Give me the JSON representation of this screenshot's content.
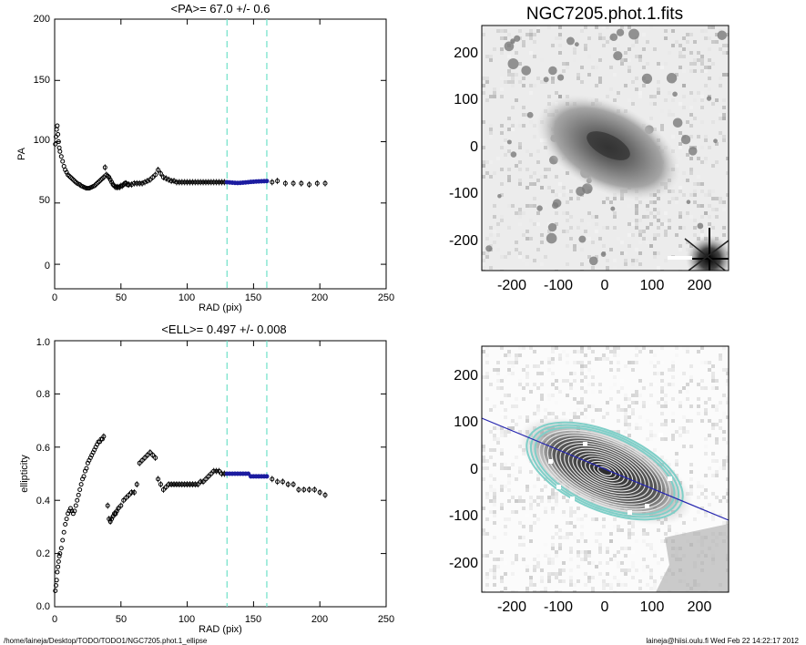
{
  "chart_data": [
    {
      "type": "scatter",
      "title": "<PA>=  67.0 +/-    0.6",
      "xlabel": "RAD (pix)",
      "ylabel": "PA",
      "xlim": [
        0,
        250
      ],
      "ylim": [
        -20,
        200
      ],
      "xticks": [
        "0",
        "50",
        "100",
        "150",
        "200",
        "250"
      ],
      "yticks": [
        "0",
        "50",
        "100",
        "150",
        "200"
      ],
      "vlines": [
        130,
        160
      ],
      "series": [
        {
          "color": "#000000",
          "points": [
            [
              0.5,
              98
            ],
            [
              1,
              104
            ],
            [
              1.5,
              110
            ],
            [
              2,
              113
            ],
            [
              2.5,
              106
            ],
            [
              3,
              100
            ],
            [
              3.5,
              95
            ],
            [
              4,
              92
            ],
            [
              5,
              88
            ],
            [
              6,
              84
            ],
            [
              7,
              80
            ],
            [
              8,
              77
            ],
            [
              9,
              75
            ],
            [
              10,
              73
            ],
            [
              11,
              72
            ],
            [
              12,
              71
            ],
            [
              13,
              70
            ],
            [
              14,
              69
            ],
            [
              15,
              68
            ],
            [
              16,
              67
            ],
            [
              17,
              66
            ],
            [
              18,
              65.5
            ],
            [
              19,
              65
            ],
            [
              20,
              64
            ],
            [
              21,
              63.5
            ],
            [
              22,
              63
            ],
            [
              23,
              62.5
            ],
            [
              24,
              62
            ],
            [
              25,
              62
            ],
            [
              26,
              62
            ],
            [
              27,
              62.5
            ],
            [
              28,
              63
            ],
            [
              29,
              63.5
            ],
            [
              30,
              64
            ],
            [
              31,
              65
            ],
            [
              32,
              66
            ],
            [
              33,
              67
            ],
            [
              34,
              68
            ],
            [
              35,
              69
            ],
            [
              36,
              70
            ],
            [
              37,
              71
            ],
            [
              38,
              79
            ],
            [
              39,
              73
            ],
            [
              40,
              72
            ],
            [
              41,
              71
            ],
            [
              42,
              69
            ],
            [
              43,
              67
            ],
            [
              44,
              65
            ],
            [
              45,
              64
            ],
            [
              46,
              63
            ],
            [
              47,
              63
            ],
            [
              48,
              63
            ],
            [
              49,
              63
            ],
            [
              50,
              64
            ],
            [
              51,
              64
            ],
            [
              52,
              65
            ],
            [
              53,
              66
            ],
            [
              54,
              66
            ],
            [
              55,
              65
            ],
            [
              56,
              65
            ],
            [
              58,
              65
            ],
            [
              60,
              66
            ],
            [
              62,
              66
            ],
            [
              64,
              66
            ],
            [
              66,
              66
            ],
            [
              68,
              67
            ],
            [
              70,
              68
            ],
            [
              72,
              69
            ],
            [
              74,
              71
            ],
            [
              76,
              73
            ],
            [
              78,
              77
            ],
            [
              80,
              74
            ],
            [
              82,
              71
            ],
            [
              84,
              70
            ],
            [
              86,
              69
            ],
            [
              88,
              68
            ],
            [
              90,
              68
            ],
            [
              92,
              67
            ],
            [
              94,
              67
            ],
            [
              96,
              67
            ],
            [
              98,
              67
            ],
            [
              100,
              67
            ],
            [
              102,
              67
            ],
            [
              104,
              67
            ],
            [
              106,
              67
            ],
            [
              108,
              67
            ],
            [
              110,
              67
            ],
            [
              112,
              67
            ],
            [
              114,
              67
            ],
            [
              116,
              67
            ],
            [
              118,
              67
            ],
            [
              120,
              67
            ],
            [
              122,
              67
            ],
            [
              124,
              67
            ],
            [
              126,
              67
            ],
            [
              128,
              67
            ],
            [
              164,
              67
            ],
            [
              168,
              68
            ],
            [
              174,
              66
            ],
            [
              180,
              66
            ],
            [
              186,
              66
            ],
            [
              192,
              65
            ],
            [
              198,
              66
            ],
            [
              204,
              66
            ]
          ]
        },
        {
          "color": "#1c1ca0",
          "points": [
            [
              130,
              67
            ],
            [
              132,
              66.8
            ],
            [
              134,
              66.6
            ],
            [
              136,
              66.4
            ],
            [
              138,
              66.3
            ],
            [
              140,
              66.4
            ],
            [
              142,
              66.6
            ],
            [
              144,
              66.8
            ],
            [
              146,
              67
            ],
            [
              148,
              67.2
            ],
            [
              150,
              67.3
            ],
            [
              152,
              67.5
            ],
            [
              154,
              67.6
            ],
            [
              156,
              67.7
            ],
            [
              158,
              67.8
            ],
            [
              160,
              67.9
            ]
          ]
        }
      ]
    },
    {
      "type": "scatter",
      "title": "<ELL>= 0.497 +/-   0.008",
      "xlabel": "RAD (pix)",
      "ylabel": "ellipticity",
      "xlim": [
        0,
        250
      ],
      "ylim": [
        0,
        1
      ],
      "xticks": [
        "0",
        "50",
        "100",
        "150",
        "200",
        "250"
      ],
      "yticks": [
        "0.0",
        "0.2",
        "0.4",
        "0.6",
        "0.8",
        "1.0"
      ],
      "vlines": [
        130,
        160
      ],
      "series": [
        {
          "color": "#000000",
          "points": [
            [
              0.5,
              0.06
            ],
            [
              1,
              0.08
            ],
            [
              1.5,
              0.1
            ],
            [
              2,
              0.13
            ],
            [
              2.5,
              0.15
            ],
            [
              3,
              0.17
            ],
            [
              3.5,
              0.19
            ],
            [
              4,
              0.2
            ],
            [
              5,
              0.22
            ],
            [
              6,
              0.25
            ],
            [
              7,
              0.28
            ],
            [
              8,
              0.31
            ],
            [
              9,
              0.33
            ],
            [
              10,
              0.35
            ],
            [
              11,
              0.36
            ],
            [
              12,
              0.37
            ],
            [
              13,
              0.36
            ],
            [
              14,
              0.35
            ],
            [
              15,
              0.36
            ],
            [
              16,
              0.38
            ],
            [
              17,
              0.4
            ],
            [
              18,
              0.42
            ],
            [
              19,
              0.44
            ],
            [
              20,
              0.46
            ],
            [
              21,
              0.48
            ],
            [
              22,
              0.49
            ],
            [
              23,
              0.51
            ],
            [
              24,
              0.52
            ],
            [
              25,
              0.54
            ],
            [
              26,
              0.55
            ],
            [
              27,
              0.56
            ],
            [
              28,
              0.57
            ],
            [
              29,
              0.58
            ],
            [
              30,
              0.59
            ],
            [
              31,
              0.6
            ],
            [
              32,
              0.61
            ],
            [
              33,
              0.62
            ],
            [
              34,
              0.62
            ],
            [
              35,
              0.63
            ],
            [
              36,
              0.63
            ],
            [
              37,
              0.64
            ],
            [
              40,
              0.38
            ],
            [
              41,
              0.33
            ],
            [
              42,
              0.32
            ],
            [
              43,
              0.33
            ],
            [
              44,
              0.34
            ],
            [
              45,
              0.35
            ],
            [
              46,
              0.35
            ],
            [
              47,
              0.36
            ],
            [
              48,
              0.37
            ],
            [
              50,
              0.38
            ],
            [
              52,
              0.4
            ],
            [
              54,
              0.41
            ],
            [
              56,
              0.42
            ],
            [
              58,
              0.43
            ],
            [
              60,
              0.43
            ],
            [
              62,
              0.46
            ],
            [
              64,
              0.54
            ],
            [
              66,
              0.55
            ],
            [
              68,
              0.56
            ],
            [
              70,
              0.57
            ],
            [
              72,
              0.58
            ],
            [
              74,
              0.57
            ],
            [
              76,
              0.56
            ],
            [
              78,
              0.48
            ],
            [
              80,
              0.46
            ],
            [
              82,
              0.44
            ],
            [
              84,
              0.45
            ],
            [
              86,
              0.46
            ],
            [
              88,
              0.46
            ],
            [
              90,
              0.46
            ],
            [
              92,
              0.46
            ],
            [
              94,
              0.46
            ],
            [
              96,
              0.46
            ],
            [
              98,
              0.46
            ],
            [
              100,
              0.46
            ],
            [
              102,
              0.46
            ],
            [
              104,
              0.46
            ],
            [
              106,
              0.46
            ],
            [
              108,
              0.46
            ],
            [
              110,
              0.47
            ],
            [
              112,
              0.47
            ],
            [
              114,
              0.48
            ],
            [
              116,
              0.49
            ],
            [
              118,
              0.5
            ],
            [
              120,
              0.51
            ],
            [
              122,
              0.51
            ],
            [
              124,
              0.51
            ],
            [
              126,
              0.5
            ],
            [
              128,
              0.5
            ],
            [
              164,
              0.48
            ],
            [
              168,
              0.47
            ],
            [
              172,
              0.47
            ],
            [
              176,
              0.46
            ],
            [
              180,
              0.46
            ],
            [
              184,
              0.44
            ],
            [
              188,
              0.44
            ],
            [
              192,
              0.44
            ],
            [
              196,
              0.44
            ],
            [
              200,
              0.43
            ],
            [
              204,
              0.42
            ]
          ]
        },
        {
          "color": "#1c1ca0",
          "points": [
            [
              130,
              0.5
            ],
            [
              132,
              0.5
            ],
            [
              134,
              0.5
            ],
            [
              136,
              0.5
            ],
            [
              138,
              0.5
            ],
            [
              140,
              0.5
            ],
            [
              142,
              0.5
            ],
            [
              144,
              0.5
            ],
            [
              146,
              0.5
            ],
            [
              148,
              0.49
            ],
            [
              150,
              0.49
            ],
            [
              152,
              0.49
            ],
            [
              154,
              0.49
            ],
            [
              156,
              0.49
            ],
            [
              158,
              0.49
            ],
            [
              160,
              0.49
            ]
          ]
        }
      ]
    },
    {
      "type": "heatmap",
      "title": "NGC7205.phot.1.fits",
      "xlim": [
        -270,
        260
      ],
      "ylim": [
        -265,
        270
      ],
      "xticks": [
        "-200",
        "-100",
        "0",
        "100",
        "200"
      ],
      "yticks": [
        "200",
        "100",
        "0",
        "-100",
        "-200"
      ]
    },
    {
      "type": "heatmap",
      "title": "",
      "xlim": [
        -270,
        260
      ],
      "ylim": [
        -265,
        270
      ],
      "xticks": [
        "-200",
        "-100",
        "0",
        "100",
        "200"
      ],
      "yticks": [
        "200",
        "100",
        "0",
        "-100",
        "-200"
      ]
    }
  ],
  "footer": {
    "left": "/home/laineja/Desktop/TODO/TODO1/NGC7205.phot.1_ellipse",
    "right": "laineja@hiisi.oulu.fi  Wed Feb 22 14:22:17 2012"
  }
}
